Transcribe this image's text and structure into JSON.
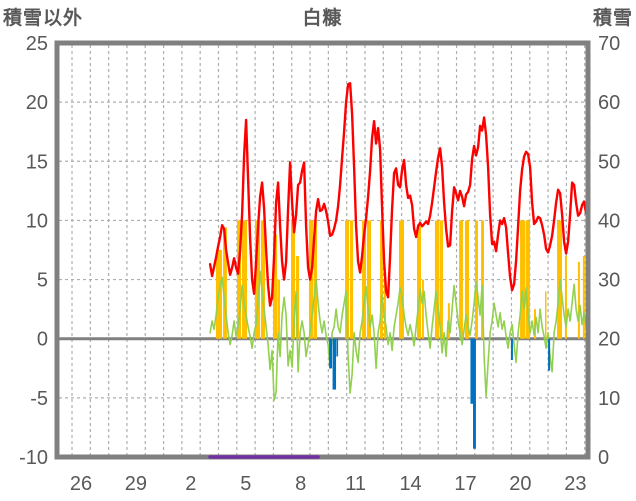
{
  "header": {
    "left_axis_title": "積雪以外",
    "station_title": "白糠",
    "right_axis_title": "積雪"
  },
  "colors": {
    "text": "#595959",
    "border": "#808080",
    "gridline": "#aeaeae",
    "zero_line": "#808080",
    "red_line": "#ff0000",
    "green_line": "#92d050",
    "yellow_bars": "#ffc000",
    "blue_bars": "#0070c0",
    "purple_line": "#7030a0"
  },
  "chart_data": {
    "type": "line",
    "title": "白糠",
    "grid": true,
    "legend": "none",
    "left_axis": {
      "label": "積雪以外",
      "min": -10,
      "max": 25,
      "ticks": [
        {
          "v": 25,
          "label": "25"
        },
        {
          "v": 20,
          "label": "20"
        },
        {
          "v": 15,
          "label": "15"
        },
        {
          "v": 10,
          "label": "10"
        },
        {
          "v": 5,
          "label": "5"
        },
        {
          "v": 0,
          "label": "0"
        },
        {
          "v": -5,
          "label": "-5"
        },
        {
          "v": -10,
          "label": "-10"
        }
      ]
    },
    "right_axis": {
      "label": "積雪",
      "min": 0,
      "max": 70,
      "ticks": [
        {
          "v": 70,
          "label": "70"
        },
        {
          "v": 60,
          "label": "60"
        },
        {
          "v": 50,
          "label": "50"
        },
        {
          "v": 40,
          "label": "40"
        },
        {
          "v": 30,
          "label": "30"
        },
        {
          "v": 20,
          "label": "20"
        },
        {
          "v": 10,
          "label": "10"
        },
        {
          "v": 0,
          "label": "0"
        }
      ]
    },
    "x_axis": {
      "days_span": 29,
      "gridlines": {
        "start_day": 0.82,
        "step": 1,
        "count": 29
      },
      "tick_labels": [
        {
          "label": "26",
          "u": 1.31
        },
        {
          "label": "29",
          "u": 4.31
        },
        {
          "label": "2",
          "u": 7.31
        },
        {
          "label": "5",
          "u": 10.31
        },
        {
          "label": "8",
          "u": 13.31
        },
        {
          "label": "11",
          "u": 16.31
        },
        {
          "label": "14",
          "u": 19.31
        },
        {
          "label": "17",
          "u": 22.31
        },
        {
          "label": "20",
          "u": 25.31
        },
        {
          "label": "23",
          "u": 28.31
        }
      ]
    },
    "zero_line_value": 0,
    "series": [
      {
        "name": "yellow_bars",
        "type": "bars",
        "axis": "left",
        "color": "#ffc000",
        "segments": [
          [
            8.68,
            9.01,
            7.5
          ],
          [
            9.07,
            9.28,
            9.4
          ],
          [
            9.83,
            10.05,
            10
          ],
          [
            10.1,
            10.38,
            10
          ],
          [
            10.81,
            11.09,
            10
          ],
          [
            11.14,
            11.36,
            10
          ],
          [
            11.8,
            12.02,
            8.8
          ],
          [
            12.04,
            12.18,
            5
          ],
          [
            12.78,
            13.0,
            10
          ],
          [
            13.05,
            13.22,
            7
          ],
          [
            13.76,
            13.98,
            10
          ],
          [
            14.01,
            14.2,
            10
          ],
          [
            15.73,
            15.95,
            10
          ],
          [
            16.0,
            16.17,
            10
          ],
          [
            16.66,
            16.88,
            10
          ],
          [
            16.93,
            17.15,
            10
          ],
          [
            17.64,
            17.8,
            10
          ],
          [
            17.86,
            17.97,
            6
          ],
          [
            18.68,
            18.95,
            10
          ],
          [
            19.66,
            19.88,
            9.7
          ],
          [
            19.93,
            20.04,
            5
          ],
          [
            20.64,
            20.86,
            10
          ],
          [
            20.89,
            21.08,
            10
          ],
          [
            21.35,
            21.46,
            3
          ],
          [
            21.96,
            22.17,
            10
          ],
          [
            22.28,
            22.5,
            10
          ],
          [
            22.83,
            22.99,
            10
          ],
          [
            23.16,
            23.32,
            10
          ],
          [
            25.29,
            25.56,
            10
          ],
          [
            25.59,
            25.83,
            10
          ],
          [
            26.05,
            26.16,
            2.5
          ],
          [
            26.65,
            26.73,
            4
          ],
          [
            27.31,
            27.58,
            10
          ],
          [
            27.74,
            27.85,
            7
          ],
          [
            28.45,
            28.56,
            6.5
          ],
          [
            28.72,
            28.83,
            7
          ]
        ]
      },
      {
        "name": "green_line",
        "type": "line",
        "axis": "left",
        "color": "#92d050",
        "width": 1.6,
        "x_start": 8.36,
        "x_step": 0.10923,
        "values": [
          0.5,
          1.5,
          0.8,
          2,
          3.5,
          4.5,
          5.2,
          3.5,
          2,
          0.5,
          -0.5,
          0.3,
          1.5,
          0.2,
          1,
          2.5,
          4.5,
          3,
          2,
          1,
          0.2,
          -0.8,
          0.5,
          1.2,
          3,
          5.7,
          4,
          2.5,
          1,
          -0.5,
          -2.6,
          -1,
          -5.2,
          -4.5,
          0.5,
          -1.5,
          2,
          3.5,
          2,
          -2.3,
          -1,
          -2.4,
          1.5,
          4,
          -2.8,
          0.5,
          1.5,
          0.5,
          -1.5,
          -0.5,
          0.5,
          2,
          3.5,
          5,
          3,
          1.5,
          0.5,
          1.5,
          0.3,
          -0.5,
          -2.5,
          0.5,
          1,
          2.5,
          1,
          0.5,
          2,
          3,
          4,
          -1.5,
          -4.6,
          -3,
          0.5,
          -1,
          -2,
          0.5,
          1.5,
          3,
          4.4,
          2.5,
          1,
          2,
          0.5,
          -2.5,
          0.5,
          1.5,
          3.7,
          2,
          1,
          -0.5,
          0.5,
          -1,
          1,
          2,
          3,
          4.3,
          3.5,
          2,
          1,
          0.3,
          1.2,
          0.4,
          -0.6,
          1,
          2.5,
          4.2,
          3,
          4,
          2,
          0.5,
          -0.8,
          1,
          2.5,
          4,
          2.5,
          1,
          -1.2,
          0.5,
          -1.5,
          1.5,
          0.5,
          2.5,
          4.5,
          3,
          1.5,
          0.5,
          -0.5,
          0.8,
          2,
          1,
          0.3,
          1.5,
          3,
          4.8,
          3.5,
          2,
          4.5,
          -1.5,
          -4.9,
          -2,
          0.5,
          1.5,
          3,
          2,
          1,
          2.2,
          0.8,
          1.5,
          0.2,
          -0.8,
          0.5,
          1.2,
          -0.5,
          -2,
          0.5,
          2,
          4,
          2.5,
          4.3,
          2,
          0.5,
          1.5,
          0.3,
          1.8,
          0.5,
          2.5,
          1,
          0.2,
          -0.8,
          0.5,
          -1.5,
          -2.8,
          0.5,
          1.5,
          3,
          5,
          3.5,
          2,
          1,
          2.5,
          1.5,
          3,
          4.6,
          2.5,
          1.5,
          2.8,
          1.2,
          2.2,
          1,
          2.5
        ]
      },
      {
        "name": "blue_bars",
        "type": "bars",
        "axis": "left",
        "color": "#0070c0",
        "segments": [
          [
            14.86,
            15.02,
            -2.5
          ],
          [
            15.05,
            15.24,
            -4.3
          ],
          [
            15.26,
            15.35,
            -1.5
          ],
          [
            22.58,
            22.72,
            -5.5
          ],
          [
            22.72,
            22.88,
            -9.3
          ],
          [
            24.79,
            24.9,
            -1.8
          ],
          [
            26.82,
            26.93,
            -2.7
          ]
        ]
      },
      {
        "name": "red_line",
        "type": "line",
        "axis": "left",
        "color": "#ff0000",
        "width": 2.4,
        "x_start": 8.36,
        "x_step": 0.10923,
        "values": [
          6.3,
          5.3,
          6.1,
          6.9,
          7.8,
          8.6,
          9.6,
          9.3,
          7.5,
          6.4,
          5.4,
          6,
          6.8,
          6,
          5.5,
          7.5,
          10.5,
          15.5,
          18.5,
          13.5,
          8.5,
          5,
          3.8,
          6.5,
          9.5,
          12,
          13.2,
          11,
          7.5,
          4.5,
          2.8,
          3.5,
          7,
          11.5,
          13.2,
          9.5,
          6.5,
          5,
          6.5,
          11,
          14.9,
          11.5,
          9,
          10.5,
          13,
          13.2,
          14.2,
          14.9,
          9.5,
          6,
          5,
          6,
          8.5,
          10.8,
          11.8,
          10.8,
          10.9,
          11.4,
          10.8,
          9.9,
          8.7,
          8.8,
          9.3,
          10,
          11.2,
          13,
          15.3,
          17.5,
          20,
          21.5,
          21.6,
          19,
          14.5,
          9.5,
          6.5,
          5.6,
          7,
          8.8,
          10.2,
          12,
          14.2,
          17,
          18.4,
          16.5,
          17.8,
          16,
          11,
          6.5,
          4,
          3.5,
          7,
          11,
          14,
          14.4,
          13,
          12.8,
          14.3,
          15.1,
          13,
          11.9,
          12.1,
          11.3,
          9.3,
          8.6,
          9.5,
          9.8,
          9.5,
          9.7,
          9.9,
          9.7,
          10.4,
          11.5,
          12.8,
          14.1,
          15.3,
          16.1,
          14.5,
          11.5,
          9.3,
          7.8,
          7.9,
          10.8,
          12.8,
          12.3,
          11.7,
          12.5,
          12,
          11.2,
          12.2,
          12.4,
          13,
          15.2,
          16.3,
          15.5,
          16.2,
          18,
          17.6,
          18.7,
          17.2,
          14.5,
          10.5,
          8,
          8.2,
          7.4,
          8.8,
          10,
          9.7,
          10.2,
          9.4,
          7.2,
          5.2,
          4.1,
          4.6,
          6.6,
          9.5,
          12.5,
          14.3,
          15.4,
          15.8,
          15.6,
          14.5,
          11.5,
          9.7,
          9.9,
          10.3,
          10.2,
          9.6,
          8.8,
          7.6,
          7.3,
          7.9,
          8.7,
          10,
          11.5,
          12.6,
          12.3,
          10.5,
          8.2,
          7.2,
          8.2,
          10.5,
          13.2,
          13,
          11.5,
          10.4,
          10.6,
          11.3,
          11.6,
          10.6,
          10.4
        ]
      },
      {
        "name": "purple_line",
        "type": "line",
        "axis": "right",
        "color": "#7030a0",
        "width": 3.5,
        "points": [
          [
            8.36,
            0
          ],
          [
            14.26,
            0
          ]
        ]
      }
    ]
  }
}
